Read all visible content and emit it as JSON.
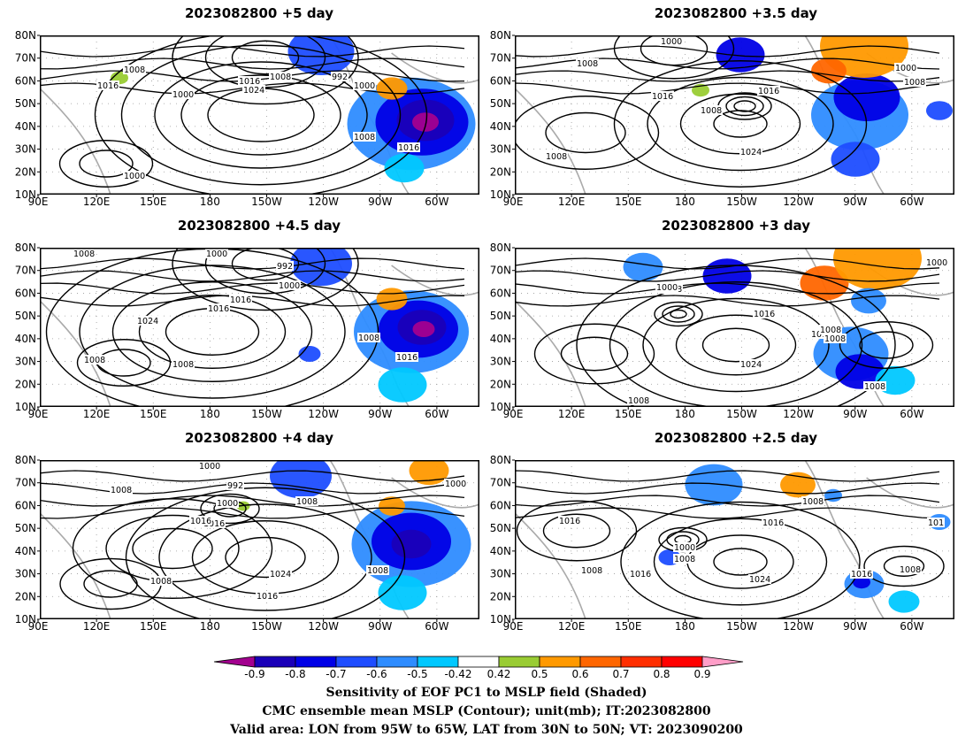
{
  "panels": [
    {
      "title": "2023082800  +5  day",
      "contour_labels": [
        "1008",
        "1016",
        "1000",
        "1024",
        "1016",
        "1008",
        "992",
        "1000",
        "1008",
        "1016",
        "1000"
      ]
    },
    {
      "title": "2023082800  +3.5  day",
      "contour_labels": [
        "1000",
        "1008",
        "1016",
        "1008",
        "1016",
        "1024",
        "1008",
        "1000",
        "1008"
      ]
    },
    {
      "title": "2023082800  +4.5  day",
      "contour_labels": [
        "1008",
        "1000",
        "992",
        "1016",
        "1000",
        "1016",
        "1024",
        "1008",
        "1008",
        "1008",
        "1016"
      ]
    },
    {
      "title": "2023082800  +3  day",
      "contour_labels": [
        "1000",
        "1008",
        "1016",
        "1016",
        "1024",
        "1008",
        "1008",
        "1008",
        "1000",
        "1008"
      ]
    },
    {
      "title": "2023082800  +4  day",
      "contour_labels": [
        "1000",
        "1008",
        "992",
        "1016",
        "1000",
        "1008",
        "1016",
        "1024",
        "1008",
        "1016",
        "1008",
        "1000"
      ]
    },
    {
      "title": "2023082800  +2.5  day",
      "contour_labels": [
        "1008",
        "1016",
        "1008",
        "1000",
        "1008",
        "1016",
        "1016",
        "1024",
        "1016",
        "1008",
        "101"
      ]
    }
  ],
  "axes": {
    "y_ticks": [
      "10N",
      "20N",
      "30N",
      "40N",
      "50N",
      "60N",
      "70N",
      "80N"
    ],
    "x_ticks": [
      "90E",
      "120E",
      "150E",
      "180",
      "150W",
      "120W",
      "90W",
      "60W"
    ]
  },
  "colorbar": {
    "labels": [
      "-0.9",
      "-0.8",
      "-0.7",
      "-0.6",
      "-0.5",
      "-0.42",
      "0.42",
      "0.5",
      "0.6",
      "0.7",
      "0.8",
      "0.9"
    ],
    "colors": [
      "#a3008f",
      "#1a00b8",
      "#0000e6",
      "#1e4dff",
      "#2e8cff",
      "#00c8ff",
      "#ffffff",
      "#99cc33",
      "#ff9900",
      "#ff6600",
      "#ff2e00",
      "#ff0000",
      "#ff9ec8"
    ]
  },
  "captions": [
    "Sensitivity of EOF PC1 to MSLP field (Shaded)",
    "CMC ensemble mean MSLP (Contour); unit(mb); IT:2023082800",
    "Valid area: LON from 95W to 65W, LAT from 30N to 50N; VT: 2023090200"
  ]
}
